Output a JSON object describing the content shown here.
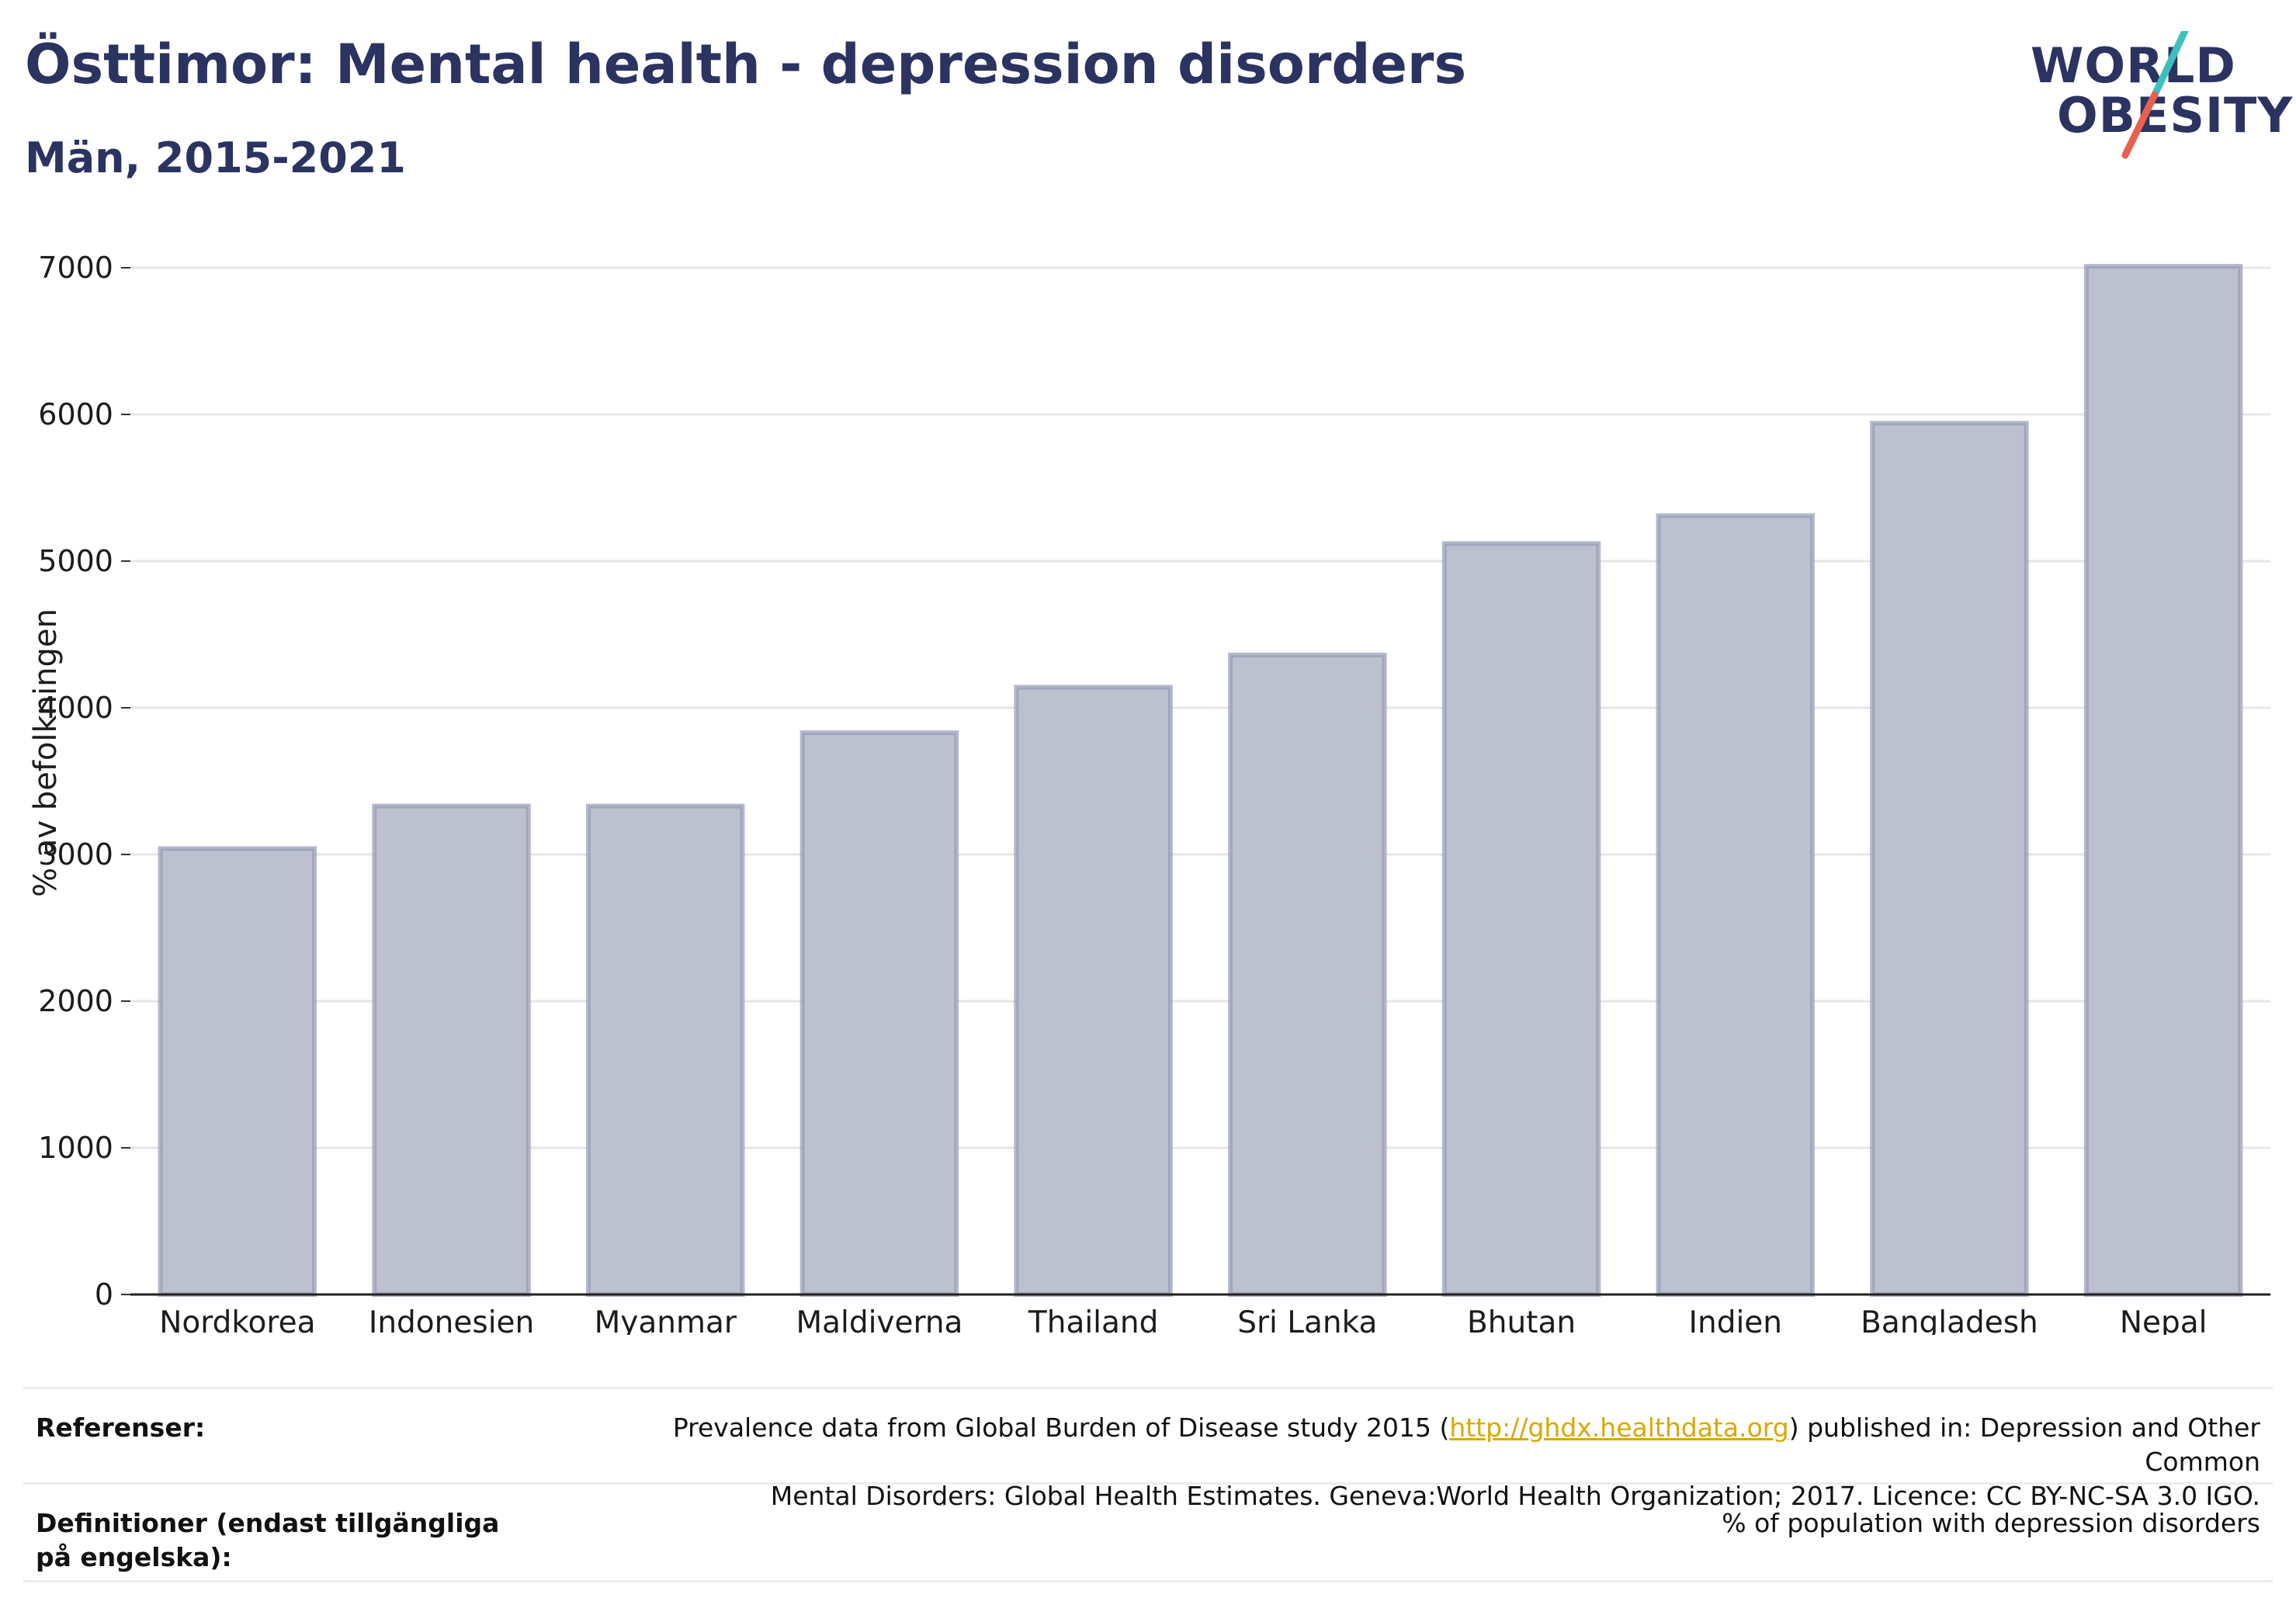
{
  "header": {
    "title": "Östtimor: Mental health - depression disorders",
    "subtitle": "Män, 2015-2021"
  },
  "logo": {
    "line1": "WORLD",
    "line2": "OBESITY",
    "colors": {
      "text": "#2b3361",
      "slash_top": "#3dbfbf",
      "slash_bottom": "#e8604c"
    }
  },
  "chart_data": {
    "type": "bar",
    "categories": [
      "Nordkorea",
      "Indonesien",
      "Myanmar",
      "Maldiverna",
      "Thailand",
      "Sri Lanka",
      "Bhutan",
      "Indien",
      "Bangladesh",
      "Nepal"
    ],
    "values": [
      3040,
      3330,
      3330,
      3830,
      4140,
      4360,
      5120,
      5310,
      5940,
      7010
    ],
    "ylabel": "% av befolkningen",
    "xlabel": "",
    "ylim": [
      0,
      7000
    ],
    "yticks": [
      0,
      1000,
      2000,
      3000,
      4000,
      5000,
      6000,
      7000
    ],
    "grid": true,
    "bar_color": "#bcc0cf",
    "bar_stroke": "#959bb5"
  },
  "footer": {
    "references_label": "Referenser:",
    "references_pre": "Prevalence data from Global Burden of Disease study 2015 (",
    "references_link": "http://ghdx.healthdata.org",
    "references_post": ") published in: Depression and Other Common",
    "references_line2": "Mental Disorders: Global Health Estimates. Geneva:World Health Organization; 2017. Licence: CC BY-NC-SA 3.0 IGO.",
    "definitions_label": "Definitioner (endast tillgängliga på engelska):",
    "definitions_value": "% of population with depression disorders"
  }
}
